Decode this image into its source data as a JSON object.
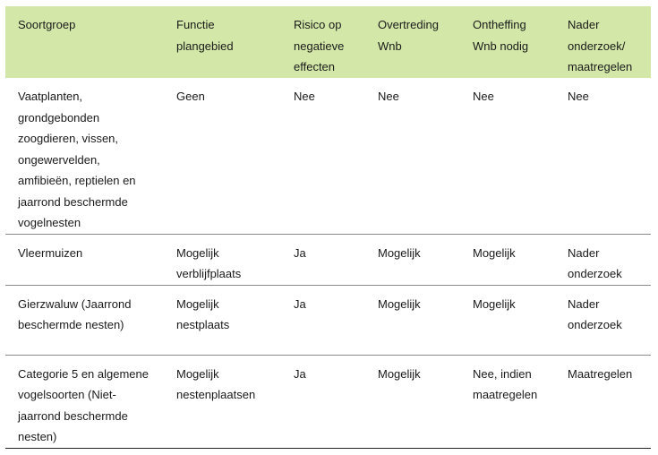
{
  "colors": {
    "header_bg": "#d3e8a8"
  },
  "headers": [
    "Soortgroep",
    "Functie plangebied",
    "Risico op negatieve effecten",
    "Overtreding Wnb",
    "Ontheffing Wnb nodig",
    "Nader onderzoek/ maatregelen"
  ],
  "rows": [
    [
      "Vaatplanten, grondgebonden zoogdieren, vissen, ongewervelden, amfibieën, reptielen en jaarrond beschermde vogelnesten",
      "Geen",
      "Nee",
      "Nee",
      "Nee",
      "Nee"
    ],
    [
      "Vleermuizen",
      "Mogelijk verblijfplaats",
      "Ja",
      "Mogelijk",
      "Mogelijk",
      "Nader onderzoek"
    ],
    [
      "Gierzwaluw (Jaarrond beschermde nesten)",
      "Mogelijk nestplaats",
      "Ja",
      "Mogelijk",
      "Mogelijk",
      "Nader onderzoek"
    ],
    [
      "Categorie 5 en algemene vogelsoorten (Niet-jaarrond beschermde nesten)",
      "Mogelijk nestenplaatsen",
      "Ja",
      "Mogelijk",
      "Nee, indien maatregelen",
      "Maatregelen"
    ]
  ]
}
